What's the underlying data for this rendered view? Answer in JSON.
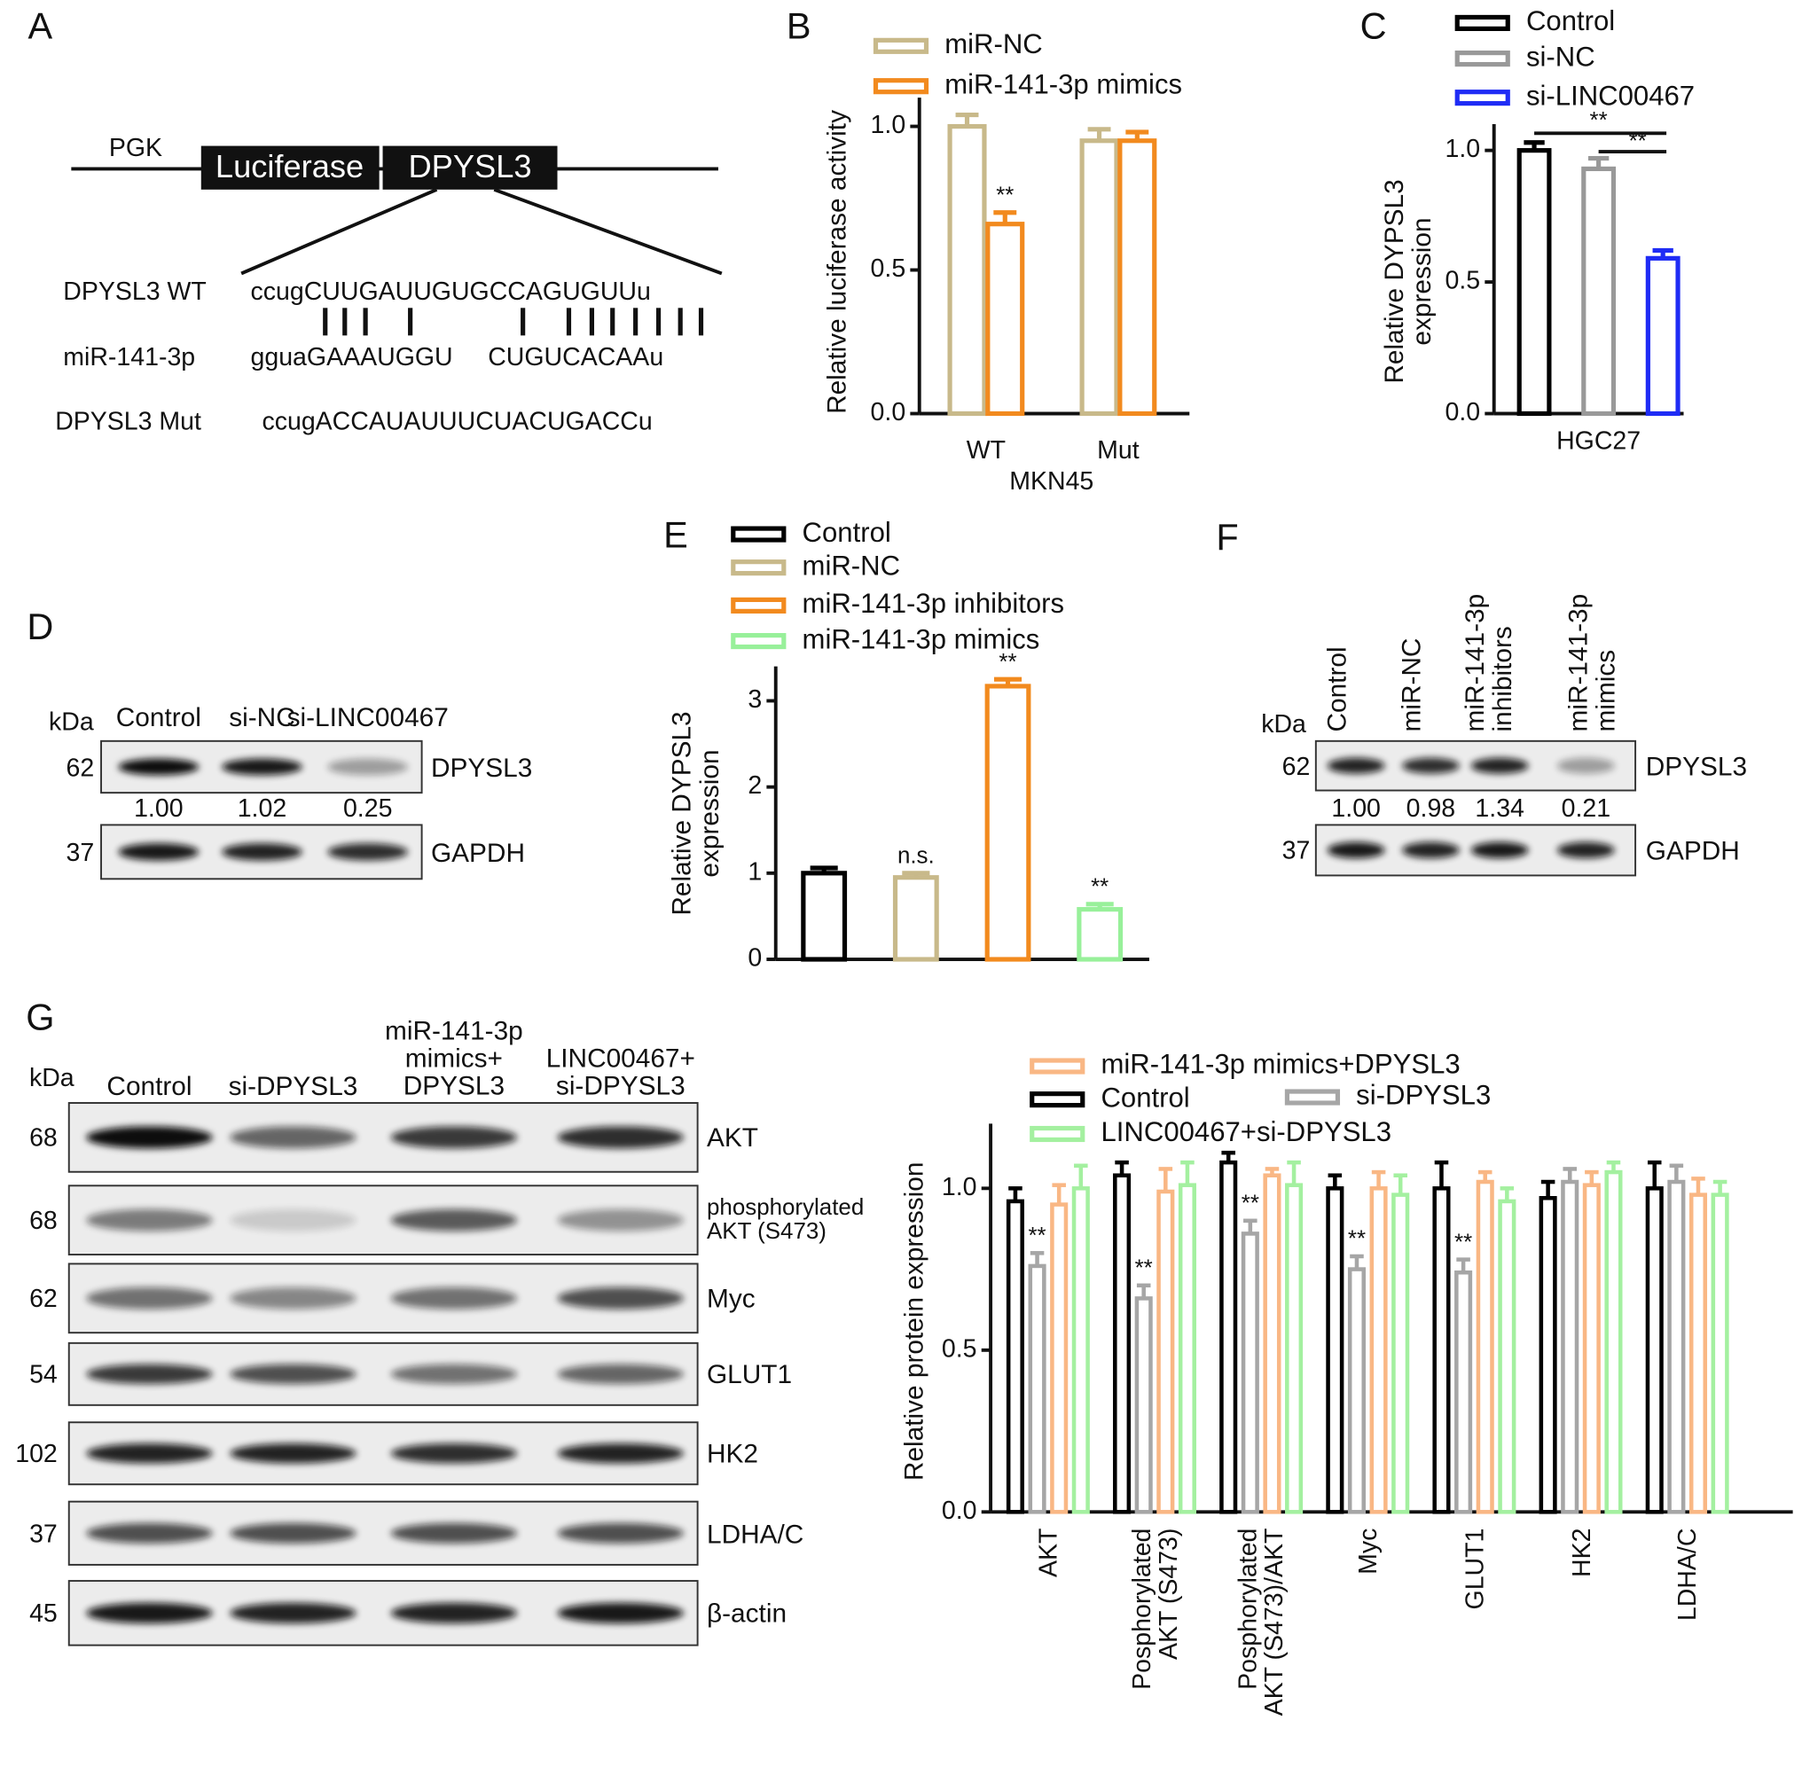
{
  "panel_labels": [
    "A",
    "B",
    "C",
    "D",
    "E",
    "F",
    "G"
  ],
  "construct": {
    "promoter": "PGK",
    "reporter": "Luciferase",
    "gene": "DPYSL3",
    "rows": [
      {
        "label": "DPYSL3 WT",
        "sequence": "ccugCUUGAUUGUGCCAGUGUUu"
      },
      {
        "label": "miR-141-3p",
        "sequence": "gguaGAAAUGGU     CUGUCACAAu"
      },
      {
        "label": "DPYSL3 Mut",
        "sequence": "ccugACCAUAUUUCUACUGACCu"
      }
    ]
  },
  "chart_data": [
    {
      "type": "bar",
      "ylabel": "Relative luciferase activity",
      "xlabel": "MKN45",
      "categories": [
        "WT",
        "Mut"
      ],
      "series": [
        {
          "name": "miR-NC",
          "color": "#c8b98a",
          "values": [
            1.0,
            0.95
          ],
          "errors": [
            0.04,
            0.04
          ],
          "annotations": [
            null,
            null
          ]
        },
        {
          "name": "miR-141-3p mimics",
          "color": "#f28a1e",
          "values": [
            0.66,
            0.95
          ],
          "errors": [
            0.04,
            0.03
          ],
          "annotations": [
            "**",
            null
          ]
        }
      ],
      "ylim": [
        0,
        1.1
      ],
      "yticks": [
        {
          "value": 0,
          "label": "0.0"
        },
        0.5,
        {
          "value": 1,
          "label": "1.0"
        }
      ]
    },
    {
      "type": "bar",
      "ylabel": "Relative DYPSL3\nexpression",
      "categories": [
        "HGC27"
      ],
      "series": [
        {
          "name": "Control",
          "color": "#000000",
          "values": [
            1.0
          ],
          "errors": [
            0.03
          ]
        },
        {
          "name": "si-NC",
          "color": "#999999",
          "values": [
            0.93
          ],
          "errors": [
            0.04
          ]
        },
        {
          "name": "si-LINC00467",
          "color": "#1f2cf5",
          "values": [
            0.59
          ],
          "errors": [
            0.03
          ]
        }
      ],
      "brackets": [
        "**",
        "**"
      ],
      "ylim": [
        0,
        1.1
      ],
      "yticks": [
        {
          "value": 0,
          "label": "0.0"
        },
        0.5,
        {
          "value": 1,
          "label": "1.0"
        }
      ]
    },
    {
      "type": "bar",
      "ylabel": "Relative DYPSL3\nexpression",
      "categories": [
        null
      ],
      "series": [
        {
          "name": "Control",
          "color": "#000000",
          "values": [
            1.0
          ],
          "errors": [
            0.06
          ],
          "annotations": [
            null
          ]
        },
        {
          "name": "miR-NC",
          "color": "#c8b98a",
          "values": [
            0.95
          ],
          "errors": [
            0.05
          ],
          "annotations": [
            "n.s."
          ]
        },
        {
          "name": "miR-141-3p inhibitors",
          "color": "#f28a1e",
          "values": [
            3.17
          ],
          "errors": [
            0.08
          ],
          "annotations": [
            "**"
          ]
        },
        {
          "name": "miR-141-3p mimics",
          "color": "#98f09a",
          "values": [
            0.58
          ],
          "errors": [
            0.06
          ],
          "annotations": [
            "**"
          ]
        }
      ],
      "ylim": [
        0,
        3.4
      ],
      "yticks": [
        0,
        1,
        2,
        3
      ]
    },
    {
      "type": "bar",
      "ylabel": "Relative protein expression",
      "categories": [
        "AKT",
        "Posphorylated\nAKT (S473)",
        "Posphorylated\nAKT (S473)/AKT",
        "Myc",
        "GLUT1",
        "HK2",
        "LDHA/C"
      ],
      "series": [
        {
          "name": "Control",
          "color": "#000000",
          "values": [
            0.96,
            1.04,
            1.08,
            1.0,
            1.0,
            0.97,
            1.0
          ],
          "errors": [
            0.04,
            0.04,
            0.03,
            0.04,
            0.08,
            0.05,
            0.08
          ],
          "annotations": [
            null,
            null,
            null,
            null,
            null,
            null,
            null
          ]
        },
        {
          "name": "si-DPYSL3",
          "color": "#a6a6a6",
          "values": [
            0.76,
            0.66,
            0.86,
            0.75,
            0.74,
            1.02,
            1.02
          ],
          "errors": [
            0.04,
            0.04,
            0.04,
            0.04,
            0.04,
            0.04,
            0.05
          ],
          "annotations": [
            "**",
            "**",
            "**",
            "**",
            "**",
            null,
            null
          ]
        },
        {
          "name": "miR-141-3p mimics+DPYSL3",
          "color": "#f9b784",
          "values": [
            0.95,
            0.99,
            1.04,
            1.0,
            1.02,
            1.01,
            0.98
          ],
          "errors": [
            0.06,
            0.07,
            0.02,
            0.05,
            0.03,
            0.04,
            0.05
          ],
          "annotations": [
            null,
            null,
            null,
            null,
            null,
            null,
            null
          ]
        },
        {
          "name": "LINC00467+si-DPYSL3",
          "color": "#a4f0a0",
          "values": [
            1.0,
            1.01,
            1.01,
            0.98,
            0.96,
            1.05,
            0.98
          ],
          "errors": [
            0.07,
            0.07,
            0.07,
            0.06,
            0.04,
            0.03,
            0.04
          ],
          "annotations": [
            null,
            null,
            null,
            null,
            null,
            null,
            null
          ]
        }
      ],
      "ylim": [
        0,
        1.2
      ],
      "yticks": [
        {
          "value": 0,
          "label": "0.0"
        },
        0.5,
        {
          "value": 1,
          "label": "1.0"
        }
      ]
    }
  ],
  "blot_d": {
    "kda": "kDa",
    "lanes": [
      "Control",
      "si-NC",
      "si-LINC00467"
    ],
    "rows": [
      {
        "kda": "62",
        "protein": "DPYSL3",
        "quantification": [
          "1.00",
          "1.02",
          "0.25"
        ]
      },
      {
        "kda": "37",
        "protein": "GAPDH"
      }
    ]
  },
  "blot_f": {
    "kda": "kDa",
    "lanes": [
      "Control",
      "miR-NC",
      "miR-141-3p\ninhibitors",
      "miR-141-3p\nmimics"
    ],
    "rows": [
      {
        "kda": "62",
        "protein": "DPYSL3",
        "quantification": [
          "1.00",
          "0.98",
          "1.34",
          "0.21"
        ]
      },
      {
        "kda": "37",
        "protein": "GAPDH"
      }
    ]
  },
  "blot_g": {
    "kda": "kDa",
    "lanes": [
      "Control",
      "si-DPYSL3",
      "miR-141-3p\nmimics+\nDPYSL3",
      "LINC00467+\nsi-DPYSL3"
    ],
    "rows": [
      {
        "kda": "68",
        "protein": "AKT"
      },
      {
        "kda": "68",
        "protein": "phosphorylated\nAKT (S473)"
      },
      {
        "kda": "62",
        "protein": "Myc"
      },
      {
        "kda": "54",
        "protein": "GLUT1"
      },
      {
        "kda": "102",
        "protein": "HK2"
      },
      {
        "kda": "37",
        "protein": "LDHA/C"
      },
      {
        "kda": "45",
        "protein": "β-actin"
      }
    ]
  }
}
